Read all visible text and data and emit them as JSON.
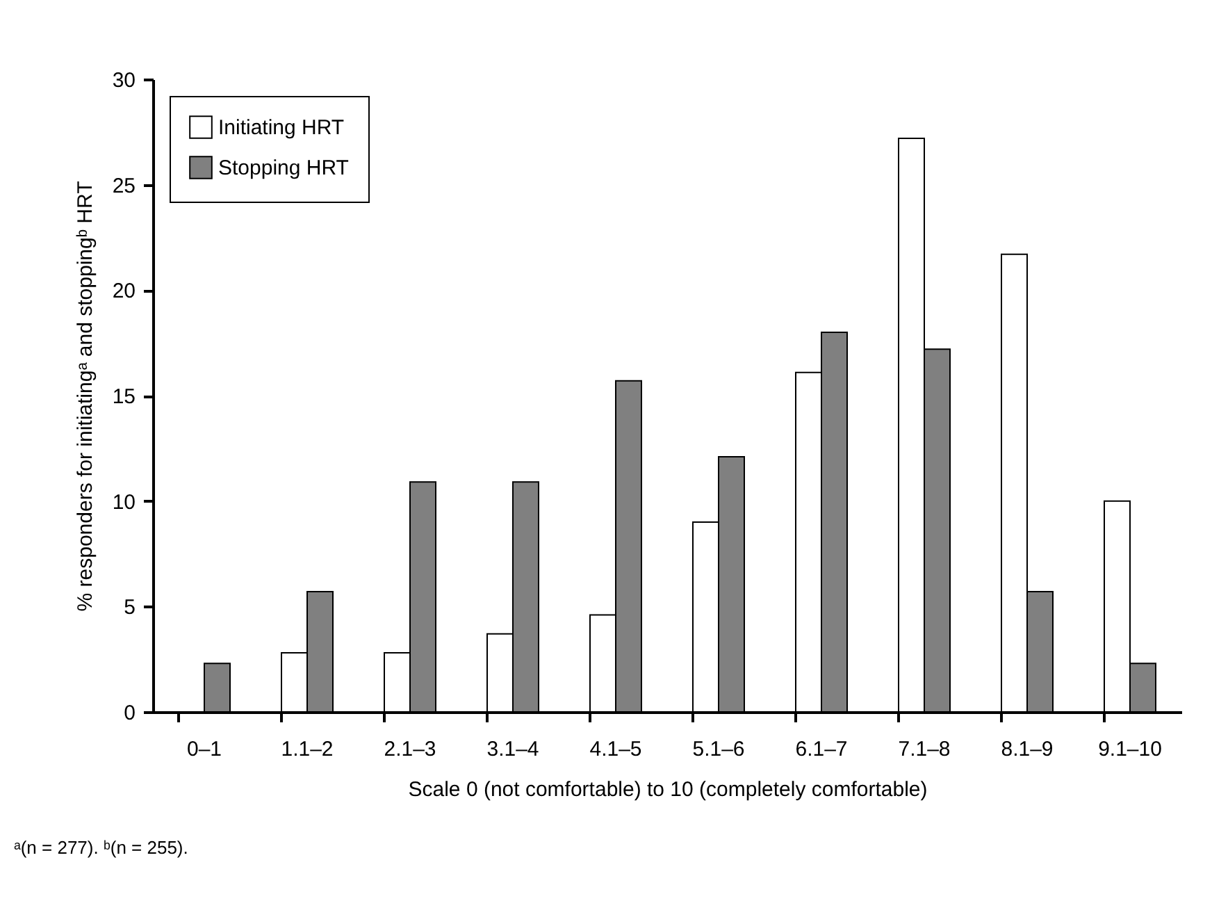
{
  "chart_data": {
    "type": "bar",
    "xlabel": "Scale 0 (not comfortable) to 10 (completely comfortable)",
    "ylabel": "% responders for initiatingᵃ and stoppingᵇ HRT",
    "annotations": [
      "ᵃ(n = 277). ᵇ(n = 255)."
    ],
    "categories": [
      "0–1",
      "1.1–2",
      "2.1–3",
      "3.1–4",
      "4.1–5",
      "5.1–6",
      "6.1–7",
      "7.1–8",
      "8.1–9",
      "9.1–10"
    ],
    "series": [
      {
        "name": "Initiating HRT",
        "color": "#ffffff",
        "values": [
          null,
          2.8,
          2.8,
          3.7,
          4.6,
          9.0,
          16.1,
          27.2,
          21.7,
          10.0
        ]
      },
      {
        "name": "Stopping HRT",
        "color": "#808080",
        "values": [
          2.3,
          5.7,
          10.9,
          10.9,
          15.7,
          12.1,
          18.0,
          17.2,
          5.7,
          2.3
        ]
      }
    ],
    "ylim": [
      0,
      30
    ],
    "yticks": [
      0,
      5,
      10,
      15,
      20,
      25,
      30
    ],
    "grid": false,
    "legend": "top left"
  }
}
